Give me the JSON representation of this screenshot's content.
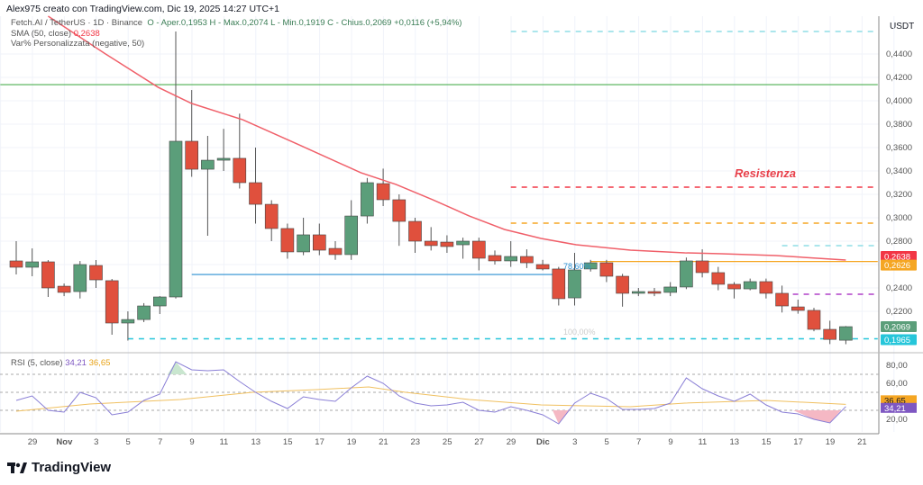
{
  "header": "Alex975 creato con TradingView.com, Dic 19, 2025 14:27 UTC+1",
  "legend": {
    "symbol": "Fetch.AI / TetherUS · 1D · Binance",
    "ohlc": "O - Aper.0,1953  H - Max.0,2074  L - Min.0,1919  C - Chius.0,2069  +0,0116 (+5,94%)",
    "sma_label": "SMA (50, close)",
    "sma_value": "0,2638",
    "var_label": "Var% Personalizzata (negative, 50)"
  },
  "rsi_legend": {
    "label": "RSI (5, close)",
    "rsi": "34,21",
    "ma": "36,65"
  },
  "currency": "USDT",
  "colors": {
    "up": "#5b9e7a",
    "down": "#e0503d",
    "sma": "#f0606a",
    "rsi": "#8a7fd6",
    "rsi_ma": "#f0c060",
    "green_line": "#4caf50",
    "cyan": "#26c6da",
    "red_dash": "#f23645",
    "orange": "#f5a623",
    "purple": "#b040c8",
    "blue": "#2a8fd0"
  },
  "annotations": {
    "resistance": "Resistenza",
    "fib_78": "78,60%",
    "fib_100": "100,00%"
  },
  "chart_data": [
    {
      "type": "candlestick",
      "title": "",
      "ylabel": "USDT",
      "ylim": [
        0.19,
        0.46
      ],
      "price_ticks": [
        "0,4400",
        "0,4200",
        "0,4000",
        "0,3800",
        "0,3600",
        "0,3400",
        "0,3200",
        "0,3000",
        "0,2800",
        "0,2400",
        "0,2200"
      ],
      "price_badges": [
        {
          "value": "0,2638",
          "color": "#f23645"
        },
        {
          "value": "0,2626",
          "color": "#f5a623"
        },
        {
          "value": "0,2069",
          "color": "#5b9e7a"
        },
        {
          "value": "0,1965",
          "color": "#26c6da"
        }
      ],
      "x_ticks": [
        "29",
        "Nov",
        "3",
        "5",
        "7",
        "9",
        "11",
        "13",
        "15",
        "17",
        "19",
        "21",
        "23",
        "25",
        "27",
        "29",
        "Dic",
        "3",
        "5",
        "7",
        "9",
        "11",
        "13",
        "15",
        "17",
        "19",
        "21"
      ],
      "candles": [
        [
          0.2631,
          0.28,
          0.2515,
          0.2577
        ],
        [
          0.2577,
          0.2738,
          0.25,
          0.2623
        ],
        [
          0.2623,
          0.2638,
          0.2323,
          0.24
        ],
        [
          0.2415,
          0.2438,
          0.233,
          0.2362
        ],
        [
          0.2369,
          0.263,
          0.231,
          0.26
        ],
        [
          0.2592,
          0.2638,
          0.24,
          0.2469
        ],
        [
          0.2462,
          0.2477,
          0.2,
          0.21
        ],
        [
          0.21,
          0.22,
          0.195,
          0.213
        ],
        [
          0.213,
          0.227,
          0.2108,
          0.2246
        ],
        [
          0.2246,
          0.233,
          0.2177,
          0.2323
        ],
        [
          0.2323,
          0.4592,
          0.231,
          0.3654
        ],
        [
          0.3654,
          0.4092,
          0.335,
          0.3415
        ],
        [
          0.3415,
          0.37,
          0.2846,
          0.3492
        ],
        [
          0.3492,
          0.376,
          0.34,
          0.3508
        ],
        [
          0.3508,
          0.389,
          0.325,
          0.33
        ],
        [
          0.33,
          0.36,
          0.295,
          0.3115
        ],
        [
          0.3115,
          0.315,
          0.28,
          0.2908
        ],
        [
          0.2908,
          0.295,
          0.265,
          0.2708
        ],
        [
          0.2708,
          0.3,
          0.268,
          0.2854
        ],
        [
          0.2854,
          0.295,
          0.268,
          0.2723
        ],
        [
          0.2738,
          0.28,
          0.264,
          0.2685
        ],
        [
          0.2685,
          0.315,
          0.264,
          0.3015
        ],
        [
          0.3015,
          0.334,
          0.295,
          0.33
        ],
        [
          0.3292,
          0.342,
          0.31,
          0.3154
        ],
        [
          0.3154,
          0.32,
          0.276,
          0.2969
        ],
        [
          0.2969,
          0.3,
          0.27,
          0.28
        ],
        [
          0.28,
          0.292,
          0.272,
          0.2762
        ],
        [
          0.2792,
          0.285,
          0.27,
          0.2754
        ],
        [
          0.2769,
          0.283,
          0.265,
          0.28
        ],
        [
          0.28,
          0.283,
          0.255,
          0.2654
        ],
        [
          0.2677,
          0.272,
          0.26,
          0.2631
        ],
        [
          0.2631,
          0.28,
          0.258,
          0.2669
        ],
        [
          0.2669,
          0.273,
          0.257,
          0.2615
        ],
        [
          0.26,
          0.264,
          0.255,
          0.2562
        ],
        [
          0.2562,
          0.258,
          0.225,
          0.2308
        ],
        [
          0.2315,
          0.27,
          0.225,
          0.2554
        ],
        [
          0.2562,
          0.264,
          0.254,
          0.2615
        ],
        [
          0.2615,
          0.264,
          0.245,
          0.25
        ],
        [
          0.25,
          0.252,
          0.224,
          0.2354
        ],
        [
          0.2354,
          0.24,
          0.233,
          0.2369
        ],
        [
          0.2369,
          0.24,
          0.233,
          0.2354
        ],
        [
          0.2362,
          0.245,
          0.233,
          0.2408
        ],
        [
          0.2408,
          0.266,
          0.239,
          0.2631
        ],
        [
          0.2631,
          0.273,
          0.249,
          0.2531
        ],
        [
          0.2531,
          0.258,
          0.238,
          0.2431
        ],
        [
          0.2431,
          0.245,
          0.231,
          0.2392
        ],
        [
          0.2392,
          0.248,
          0.238,
          0.2454
        ],
        [
          0.2454,
          0.248,
          0.231,
          0.2354
        ],
        [
          0.2354,
          0.242,
          0.219,
          0.2246
        ],
        [
          0.2238,
          0.23,
          0.218,
          0.2208
        ],
        [
          0.2208,
          0.223,
          0.203,
          0.2046
        ],
        [
          0.2046,
          0.212,
          0.192,
          0.196
        ],
        [
          0.1953,
          0.2074,
          0.1919,
          0.2069
        ]
      ],
      "sma_points": [
        [
          2,
          0.4723
        ],
        [
          5.6,
          0.44
        ],
        [
          8.9,
          0.4115
        ],
        [
          11,
          0.3977
        ],
        [
          14.2,
          0.3838
        ],
        [
          17.6,
          0.3631
        ],
        [
          21.6,
          0.3385
        ],
        [
          23.8,
          0.3285
        ],
        [
          26.1,
          0.3154
        ],
        [
          28.4,
          0.3015
        ],
        [
          30.6,
          0.29
        ],
        [
          32.9,
          0.2823
        ],
        [
          35.1,
          0.2769
        ],
        [
          38.5,
          0.2723
        ],
        [
          41.9,
          0.27
        ],
        [
          44.2,
          0.2692
        ],
        [
          47.6,
          0.2677
        ],
        [
          52,
          0.2638
        ]
      ],
      "levels": [
        {
          "value": 0.4138,
          "style": "solid",
          "color": "#4caf50",
          "from": -1,
          "to": 54
        },
        {
          "value": 0.4592,
          "style": "dash",
          "color": "#8fdde6",
          "from": 31,
          "to": 54
        },
        {
          "value": 0.3262,
          "style": "dash",
          "color": "#f23645",
          "from": 31,
          "to": 54
        },
        {
          "value": 0.2954,
          "style": "dash",
          "color": "#f5a623",
          "from": 31,
          "to": 54
        },
        {
          "value": 0.2762,
          "style": "dash",
          "color": "#8fdde6",
          "from": 48,
          "to": 54
        },
        {
          "value": 0.2626,
          "style": "solid",
          "color": "#f5a623",
          "from": 36,
          "to": 54
        },
        {
          "value": 0.2346,
          "style": "dash",
          "color": "#b040c8",
          "from": 48,
          "to": 54
        },
        {
          "value": 0.2515,
          "style": "solid",
          "color": "#2a8fd0",
          "from": 11,
          "to": 34
        },
        {
          "value": 0.1965,
          "style": "dash",
          "color": "#26c6da",
          "from": 7,
          "to": 54
        }
      ],
      "rsi": {
        "ylim": [
          0,
          100
        ],
        "ticks": [
          "80,00",
          "60,00",
          "20,00"
        ],
        "bands": [
          70,
          50,
          30
        ],
        "values": [
          41,
          46,
          30,
          28,
          50,
          44,
          25,
          28,
          41,
          48,
          84,
          75,
          74,
          75,
          62,
          50,
          40,
          32,
          45,
          42,
          40,
          55,
          68,
          60,
          46,
          38,
          35,
          36,
          39,
          30,
          28,
          34,
          30,
          25,
          15,
          38,
          49,
          43,
          31,
          31,
          32,
          38,
          66,
          54,
          46,
          40,
          48,
          36,
          28,
          26,
          20,
          16,
          34.21
        ],
        "ma_points": [
          [
            0,
            29
          ],
          [
            4.6,
            37
          ],
          [
            10.3,
            42
          ],
          [
            14.8,
            50
          ],
          [
            18.8,
            53
          ],
          [
            22.1,
            56
          ],
          [
            24.4,
            50
          ],
          [
            28.4,
            42
          ],
          [
            32.9,
            36
          ],
          [
            38.5,
            34
          ],
          [
            41.9,
            38
          ],
          [
            47,
            41
          ],
          [
            52,
            36.65
          ]
        ]
      }
    }
  ]
}
